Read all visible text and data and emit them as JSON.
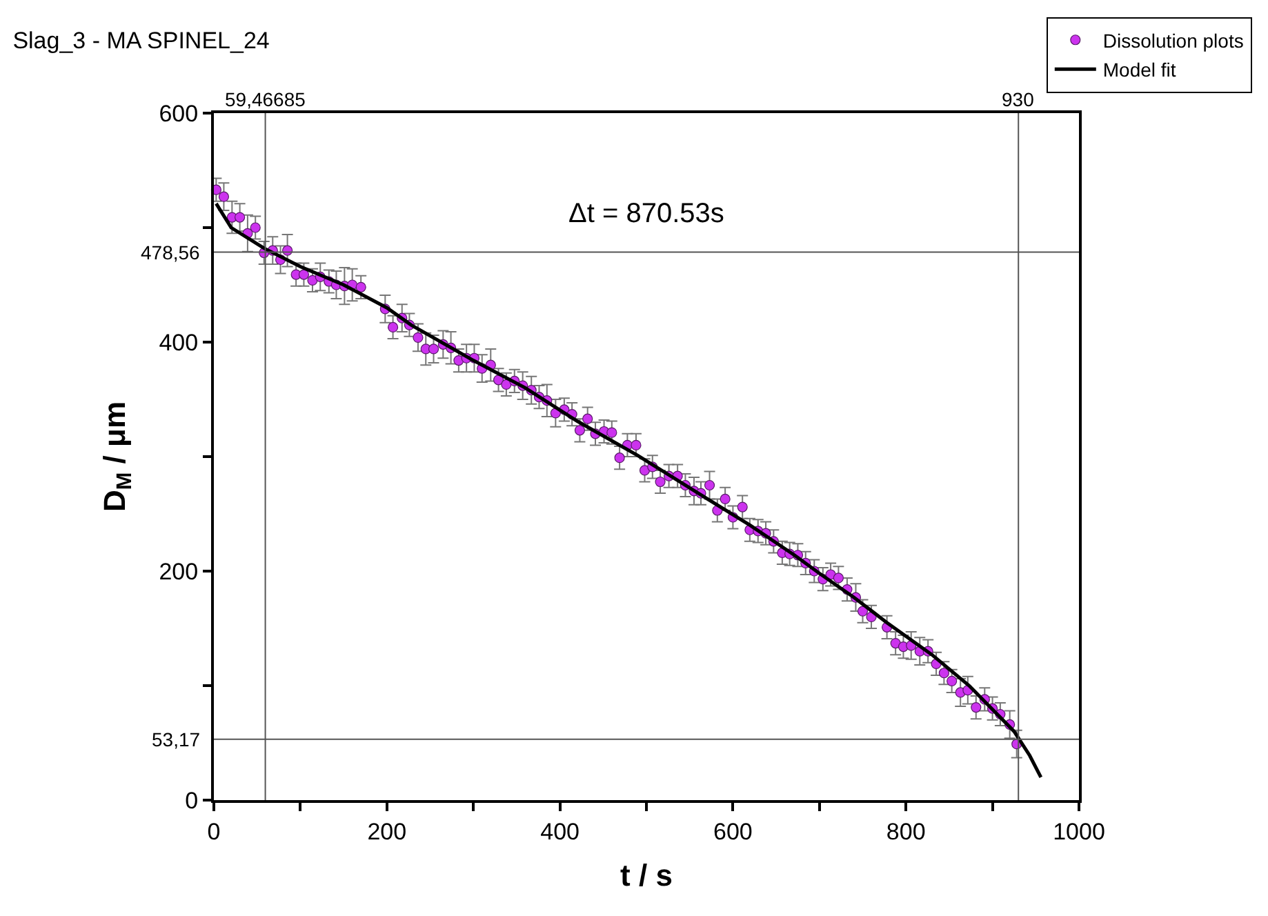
{
  "chart_data": {
    "type": "scatter",
    "title": "Slag_3 - MA SPINEL_24",
    "xlabel": "t / s",
    "ylabel": "D$_{M}$ / μm",
    "annotations": [
      "Δt = 870.53s"
    ],
    "xlim": [
      0,
      1000
    ],
    "xticks": [
      0,
      {
        "value": 100,
        "label": null
      },
      200,
      {
        "value": 300,
        "label": null
      },
      400,
      {
        "value": 500,
        "label": null
      },
      600,
      {
        "value": 700,
        "label": null
      },
      800,
      {
        "value": 900,
        "label": null
      },
      1000
    ],
    "ylim": [
      0,
      600
    ],
    "yticks": [
      0,
      {
        "value": 100,
        "label": null
      },
      200,
      {
        "value": 300,
        "label": null
      },
      400,
      {
        "value": 500,
        "label": null
      },
      600
    ],
    "legend": "top right",
    "marker": "circle",
    "ref_lines": [
      {
        "axis": "x",
        "value": 59.46685,
        "label": "59,46685",
        "color": "#555555"
      },
      {
        "axis": "x",
        "value": 930,
        "label": "930",
        "color": "#555555"
      },
      {
        "axis": "y",
        "value": 478.56,
        "label": "478,56",
        "color": "#555555"
      },
      {
        "axis": "y",
        "value": 53.17,
        "label": "53,17",
        "color": "#555555"
      }
    ],
    "series": [
      {
        "name": "Dissolution plots",
        "color": "#cc33ee",
        "x": [
          2.7,
          11.5,
          21,
          30,
          39,
          48,
          58,
          68,
          77,
          85,
          95,
          104,
          114,
          123,
          133,
          141.5,
          151,
          160,
          170,
          198,
          207,
          217.5,
          226,
          236,
          245,
          254,
          265,
          274,
          283,
          292,
          301,
          310,
          320,
          329,
          338,
          347.5,
          357,
          367,
          376,
          385,
          395,
          405,
          414,
          423,
          432,
          441,
          451,
          460,
          469,
          478,
          488,
          498,
          507,
          516,
          526,
          536,
          545,
          555,
          563,
          573,
          582,
          591,
          600,
          611,
          619.5,
          629,
          638,
          647,
          657,
          665.6,
          675,
          684,
          694,
          704,
          713,
          722,
          732,
          742,
          750,
          760,
          778,
          788,
          797,
          806,
          816,
          825.5,
          835,
          844,
          853,
          863,
          871.5,
          881,
          891,
          900,
          909,
          920,
          928
        ],
        "values": [
          533,
          527,
          509,
          509,
          495,
          500,
          478,
          480,
          472,
          480,
          459,
          459,
          454,
          457,
          453,
          450,
          449,
          450,
          448,
          429,
          413,
          421,
          415,
          404,
          394,
          394,
          398,
          395,
          384,
          386,
          386,
          377,
          380,
          367,
          363,
          366,
          362,
          358,
          352,
          349,
          338,
          341,
          337,
          323,
          333,
          320,
          322,
          321,
          299,
          310,
          310,
          288,
          291,
          278,
          283,
          283,
          275,
          270,
          268,
          275,
          253,
          263,
          247,
          256,
          236,
          235,
          233,
          226,
          216,
          215,
          214,
          207,
          200,
          193,
          197,
          194,
          184,
          177,
          165,
          160,
          151,
          137,
          134,
          135,
          130,
          130,
          119,
          111,
          104,
          94,
          96,
          81,
          88,
          80,
          75,
          66,
          49
        ],
        "errors": [
          10,
          12,
          14,
          12,
          16,
          10,
          10,
          12,
          12,
          14,
          10,
          10,
          10,
          12,
          10,
          12,
          16,
          14,
          10,
          12,
          10,
          12,
          10,
          12,
          14,
          12,
          12,
          14,
          10,
          12,
          12,
          12,
          14,
          10,
          10,
          10,
          12,
          12,
          10,
          14,
          12,
          10,
          10,
          10,
          10,
          10,
          10,
          10,
          10,
          10,
          10,
          10,
          10,
          10,
          10,
          10,
          10,
          12,
          10,
          12,
          10,
          10,
          10,
          10,
          10,
          10,
          10,
          10,
          10,
          10,
          10,
          10,
          10,
          10,
          10,
          10,
          10,
          12,
          10,
          10,
          10,
          10,
          10,
          12,
          12,
          10,
          10,
          10,
          10,
          12,
          12,
          10,
          10,
          10,
          10,
          12,
          12
        ]
      },
      {
        "name": "Model fit",
        "type": "line",
        "color": "#000000",
        "marker": "none",
        "x": [
          2.7,
          20,
          58,
          100,
          150,
          200,
          228,
          300,
          360,
          420,
          490,
          560,
          620,
          671,
          700,
          740,
          778,
          830,
          873,
          925,
          943,
          956
        ],
        "values": [
          521,
          500,
          482,
          466,
          450,
          430,
          415,
          384,
          360,
          331,
          301,
          268,
          240,
          214,
          198,
          177,
          155,
          127,
          100,
          60,
          39,
          20
        ]
      }
    ]
  }
}
